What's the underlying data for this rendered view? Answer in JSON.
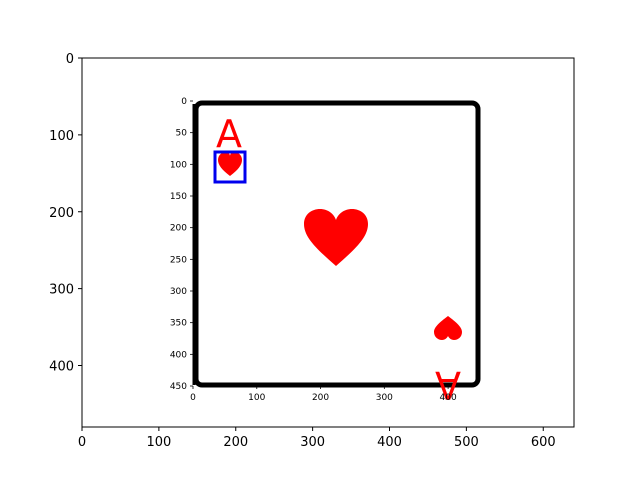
{
  "outer_axes": {
    "x_ticks": [
      "0",
      "100",
      "200",
      "300",
      "400",
      "500",
      "600"
    ],
    "y_ticks": [
      "0",
      "100",
      "200",
      "300",
      "400"
    ]
  },
  "inner_axes": {
    "x_ticks": [
      "0",
      "100",
      "200",
      "300",
      "400"
    ],
    "y_ticks": [
      "0",
      "50",
      "100",
      "150",
      "200",
      "250",
      "300",
      "350",
      "400",
      "450"
    ]
  },
  "card": {
    "rank": "A",
    "suit": "heart-icon",
    "suit_color": "#ff0000",
    "frame_color": "#000000",
    "highlight_box_color": "#0000ee"
  }
}
